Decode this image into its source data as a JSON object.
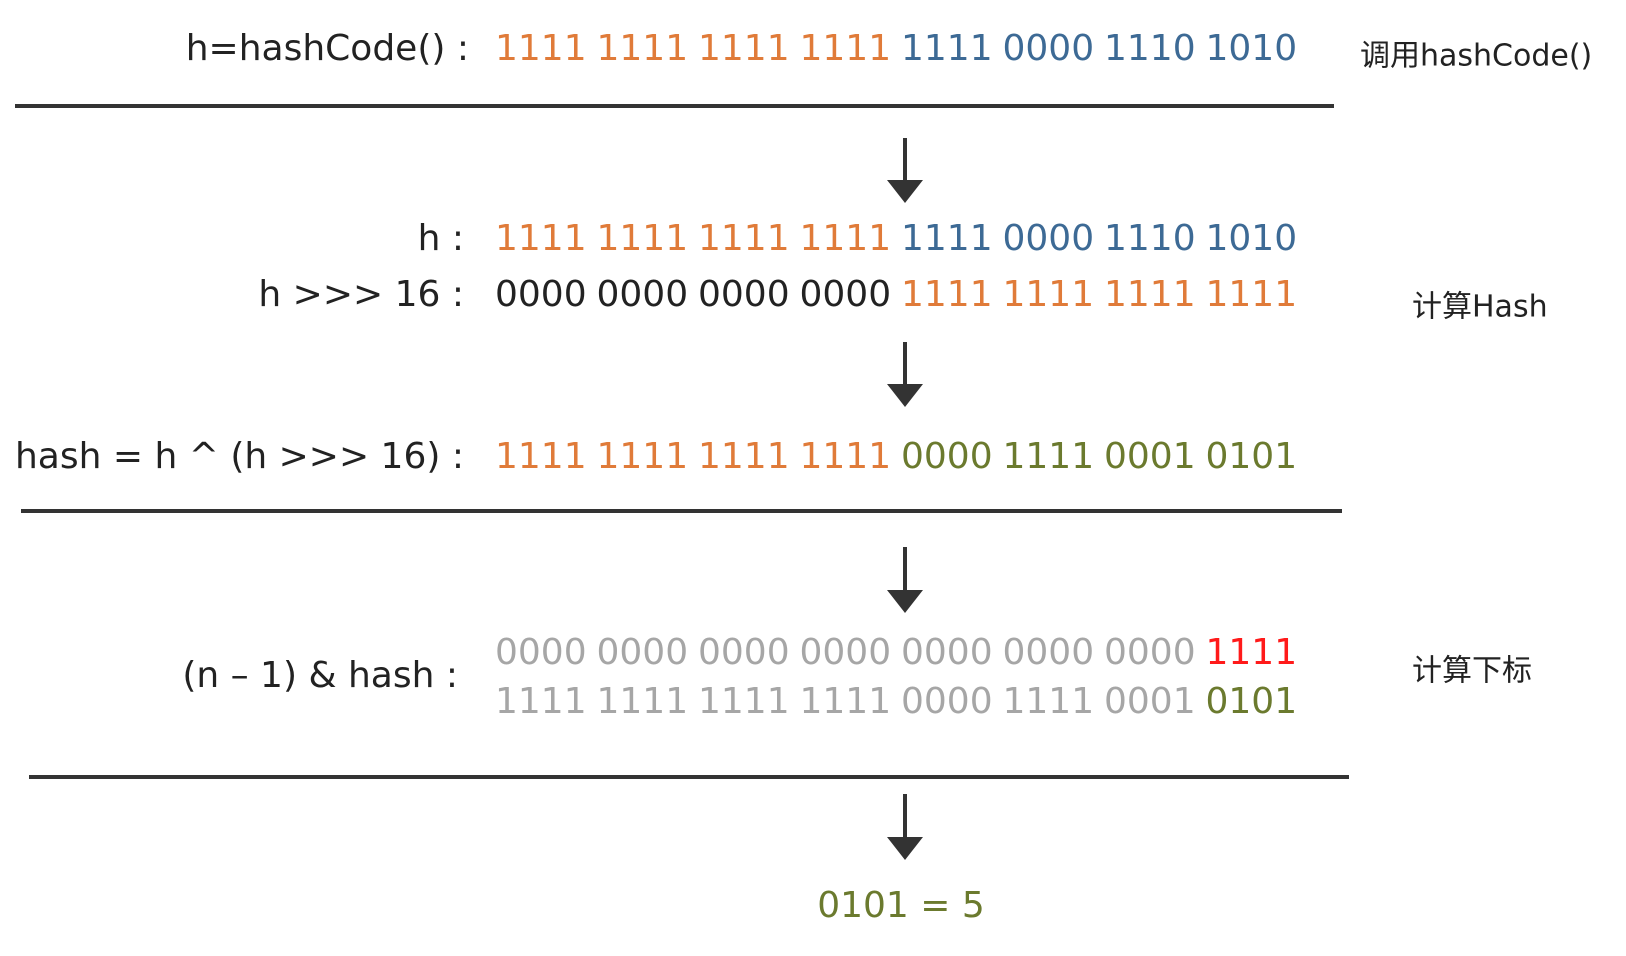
{
  "rows": [
    {
      "label": "h=hashCode() :",
      "lines": [
        [
          {
            "text": "1111",
            "color": "#e07b39"
          },
          {
            "text": "1111",
            "color": "#e07b39"
          },
          {
            "text": "1111",
            "color": "#e07b39"
          },
          {
            "text": "1111",
            "color": "#e07b39"
          },
          {
            "text": "1111",
            "color": "#3d6a95"
          },
          {
            "text": "0000",
            "color": "#3d6a95"
          },
          {
            "text": "1110",
            "color": "#3d6a95"
          },
          {
            "text": "1010",
            "color": "#3d6a95"
          }
        ]
      ]
    },
    {
      "label": "h :",
      "lines": [
        [
          {
            "text": "1111",
            "color": "#e07b39"
          },
          {
            "text": "1111",
            "color": "#e07b39"
          },
          {
            "text": "1111",
            "color": "#e07b39"
          },
          {
            "text": "1111",
            "color": "#e07b39"
          },
          {
            "text": "1111",
            "color": "#3d6a95"
          },
          {
            "text": "0000",
            "color": "#3d6a95"
          },
          {
            "text": "1110",
            "color": "#3d6a95"
          },
          {
            "text": "1010",
            "color": "#3d6a95"
          }
        ]
      ]
    },
    {
      "label": "h >>> 16 :",
      "lines": [
        [
          {
            "text": "0000",
            "color": "#222222"
          },
          {
            "text": "0000",
            "color": "#222222"
          },
          {
            "text": "0000",
            "color": "#222222"
          },
          {
            "text": "0000",
            "color": "#222222"
          },
          {
            "text": "1111",
            "color": "#e07b39"
          },
          {
            "text": "1111",
            "color": "#e07b39"
          },
          {
            "text": "1111",
            "color": "#e07b39"
          },
          {
            "text": "1111",
            "color": "#e07b39"
          }
        ]
      ]
    },
    {
      "label": "hash = h ^ (h >>> 16) :",
      "lines": [
        [
          {
            "text": "1111",
            "color": "#e07b39"
          },
          {
            "text": "1111",
            "color": "#e07b39"
          },
          {
            "text": "1111",
            "color": "#e07b39"
          },
          {
            "text": "1111",
            "color": "#e07b39"
          },
          {
            "text": "0000",
            "color": "#6b7a2e"
          },
          {
            "text": "1111",
            "color": "#6b7a2e"
          },
          {
            "text": "0001",
            "color": "#6b7a2e"
          },
          {
            "text": "0101",
            "color": "#6b7a2e"
          }
        ]
      ]
    },
    {
      "label": "(n  –  1) & hash :",
      "lines": [
        [
          {
            "text": "0000",
            "color": "#a6a6a6"
          },
          {
            "text": "0000",
            "color": "#a6a6a6"
          },
          {
            "text": "0000",
            "color": "#a6a6a6"
          },
          {
            "text": "0000",
            "color": "#a6a6a6"
          },
          {
            "text": "0000",
            "color": "#a6a6a6"
          },
          {
            "text": "0000",
            "color": "#a6a6a6"
          },
          {
            "text": "0000",
            "color": "#a6a6a6"
          },
          {
            "text": "1111",
            "color": "#ff1a1a"
          }
        ],
        [
          {
            "text": "1111",
            "color": "#a6a6a6"
          },
          {
            "text": "1111",
            "color": "#a6a6a6"
          },
          {
            "text": "1111",
            "color": "#a6a6a6"
          },
          {
            "text": "1111",
            "color": "#a6a6a6"
          },
          {
            "text": "0000",
            "color": "#a6a6a6"
          },
          {
            "text": "1111",
            "color": "#a6a6a6"
          },
          {
            "text": "0001",
            "color": "#a6a6a6"
          },
          {
            "text": "0101",
            "color": "#6b7a2e"
          }
        ]
      ]
    }
  ],
  "side_labels": [
    "调用hashCode()",
    "计算Hash",
    "计算下标"
  ],
  "result": {
    "text": "0101 = 5",
    "color": "#6b7a2e"
  }
}
